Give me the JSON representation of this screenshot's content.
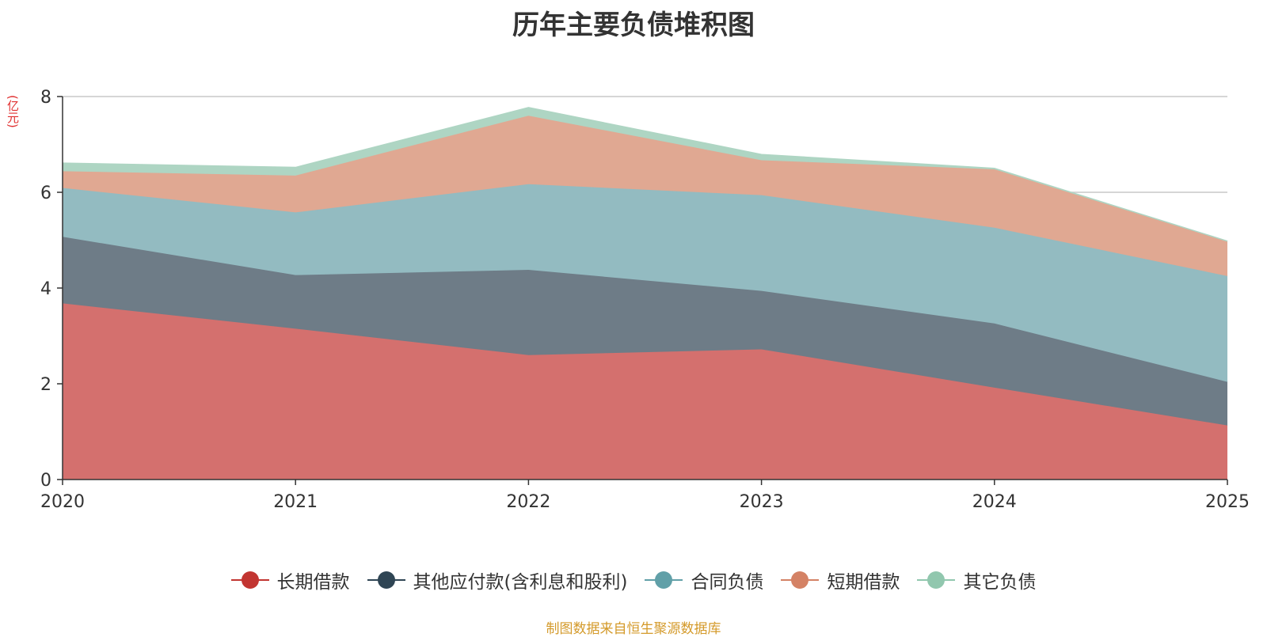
{
  "chart_data": {
    "type": "area",
    "stacked": true,
    "title": "历年主要负债堆积图",
    "ylabel": "(亿元)",
    "xlabel": "",
    "x": [
      "2020",
      "2021",
      "2022",
      "2023",
      "2024",
      "2025"
    ],
    "ylim": [
      0,
      8
    ],
    "yticks": [
      0,
      2,
      4,
      6,
      8
    ],
    "grid": true,
    "legend_position": "bottom",
    "series": [
      {
        "name": "长期借款",
        "color": "#c23531",
        "fill": "#d4706e",
        "values": [
          3.68,
          3.15,
          2.6,
          2.72,
          1.92,
          1.13
        ]
      },
      {
        "name": "其他应付款(含利息和股利)",
        "color": "#2f4554",
        "fill": "#6e7c87",
        "values": [
          1.39,
          1.12,
          1.78,
          1.22,
          1.34,
          0.91
        ]
      },
      {
        "name": "合同负债",
        "color": "#61a0a8",
        "fill": "#93bbc1",
        "values": [
          1.02,
          1.31,
          1.79,
          2.0,
          2.0,
          2.21
        ]
      },
      {
        "name": "短期借款",
        "color": "#d48265",
        "fill": "#e0a892",
        "values": [
          0.35,
          0.77,
          1.43,
          0.73,
          1.22,
          0.72
        ]
      },
      {
        "name": "其它负债",
        "color": "#91c7ae",
        "fill": "#aed5c3",
        "values": [
          0.17,
          0.17,
          0.17,
          0.12,
          0.02,
          0.01
        ]
      }
    ],
    "source": "制图数据来自恒生聚源数据库"
  }
}
